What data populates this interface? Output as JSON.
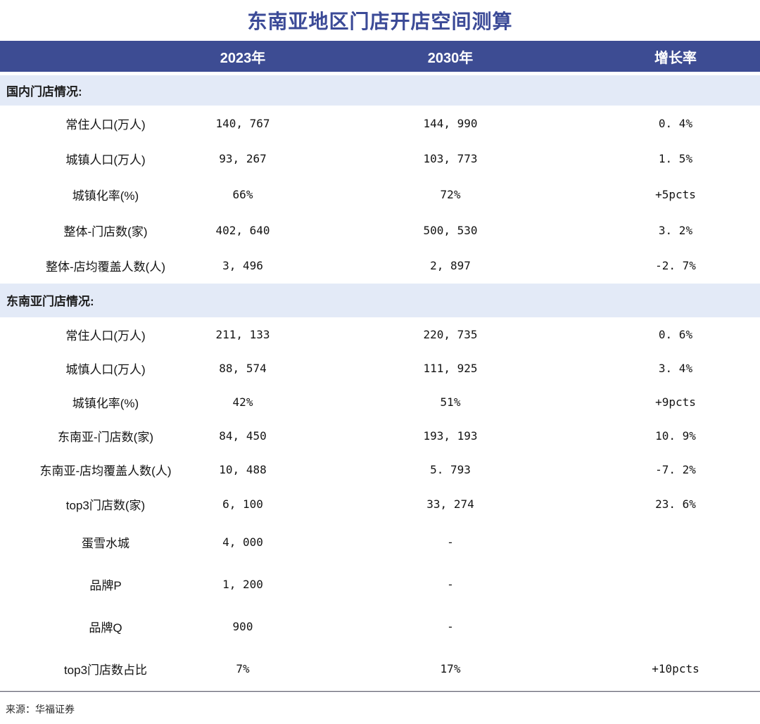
{
  "chart_data": {
    "type": "table",
    "title": "东南亚地区门店开店空间测算",
    "columns": [
      "",
      "2023年",
      "2030年",
      "增长率"
    ],
    "sections": [
      {
        "header": "国内门店情况:",
        "rows": [
          [
            "常住人口(万人)",
            "140, 767",
            "144, 990",
            "0. 4%"
          ],
          [
            "城镇人口(万人)",
            "93, 267",
            "103, 773",
            "1. 5%"
          ],
          [
            "城镇化率(%)",
            "66%",
            "72%",
            "+5pcts"
          ],
          [
            "整体-门店数(家)",
            "402, 640",
            "500, 530",
            "3. 2%"
          ],
          [
            "整体-店均覆盖人数(人)",
            "3, 496",
            "2, 897",
            "-2. 7%"
          ]
        ]
      },
      {
        "header": "东南亚门店情况:",
        "rows": [
          [
            "常住人口(万人)",
            "211, 133",
            "220, 735",
            "0. 6%"
          ],
          [
            "城慎人口(万人)",
            "88, 574",
            "111, 925",
            "3. 4%"
          ],
          [
            "城镇化率(%)",
            "42%",
            "51%",
            "+9pcts"
          ],
          [
            "东南亚-门店数(家)",
            "84, 450",
            "193, 193",
            "10. 9%"
          ],
          [
            "东南亚-店均覆盖人数(人)",
            "10, 488",
            "5. 793",
            "-7. 2%"
          ],
          [
            "top3门店数(家)",
            "6, 100",
            "33, 274",
            "23. 6%"
          ],
          [
            "蛋雪水城",
            "4, 000",
            "-",
            ""
          ],
          [
            "品牌P",
            "1, 200",
            "-",
            ""
          ],
          [
            "品牌Q",
            "900",
            "-",
            ""
          ],
          [
            "top3门店数占比",
            "7%",
            "17%",
            "+10pcts"
          ]
        ]
      }
    ],
    "source": "来源：华福证券"
  },
  "colors": {
    "header_bg": "#3D4C93",
    "header_text": "#FFFFFF",
    "section_band_bg": "#E3EAF7",
    "title_text": "#3B4A97",
    "body_text": "#141414",
    "divider": "#63636F"
  }
}
